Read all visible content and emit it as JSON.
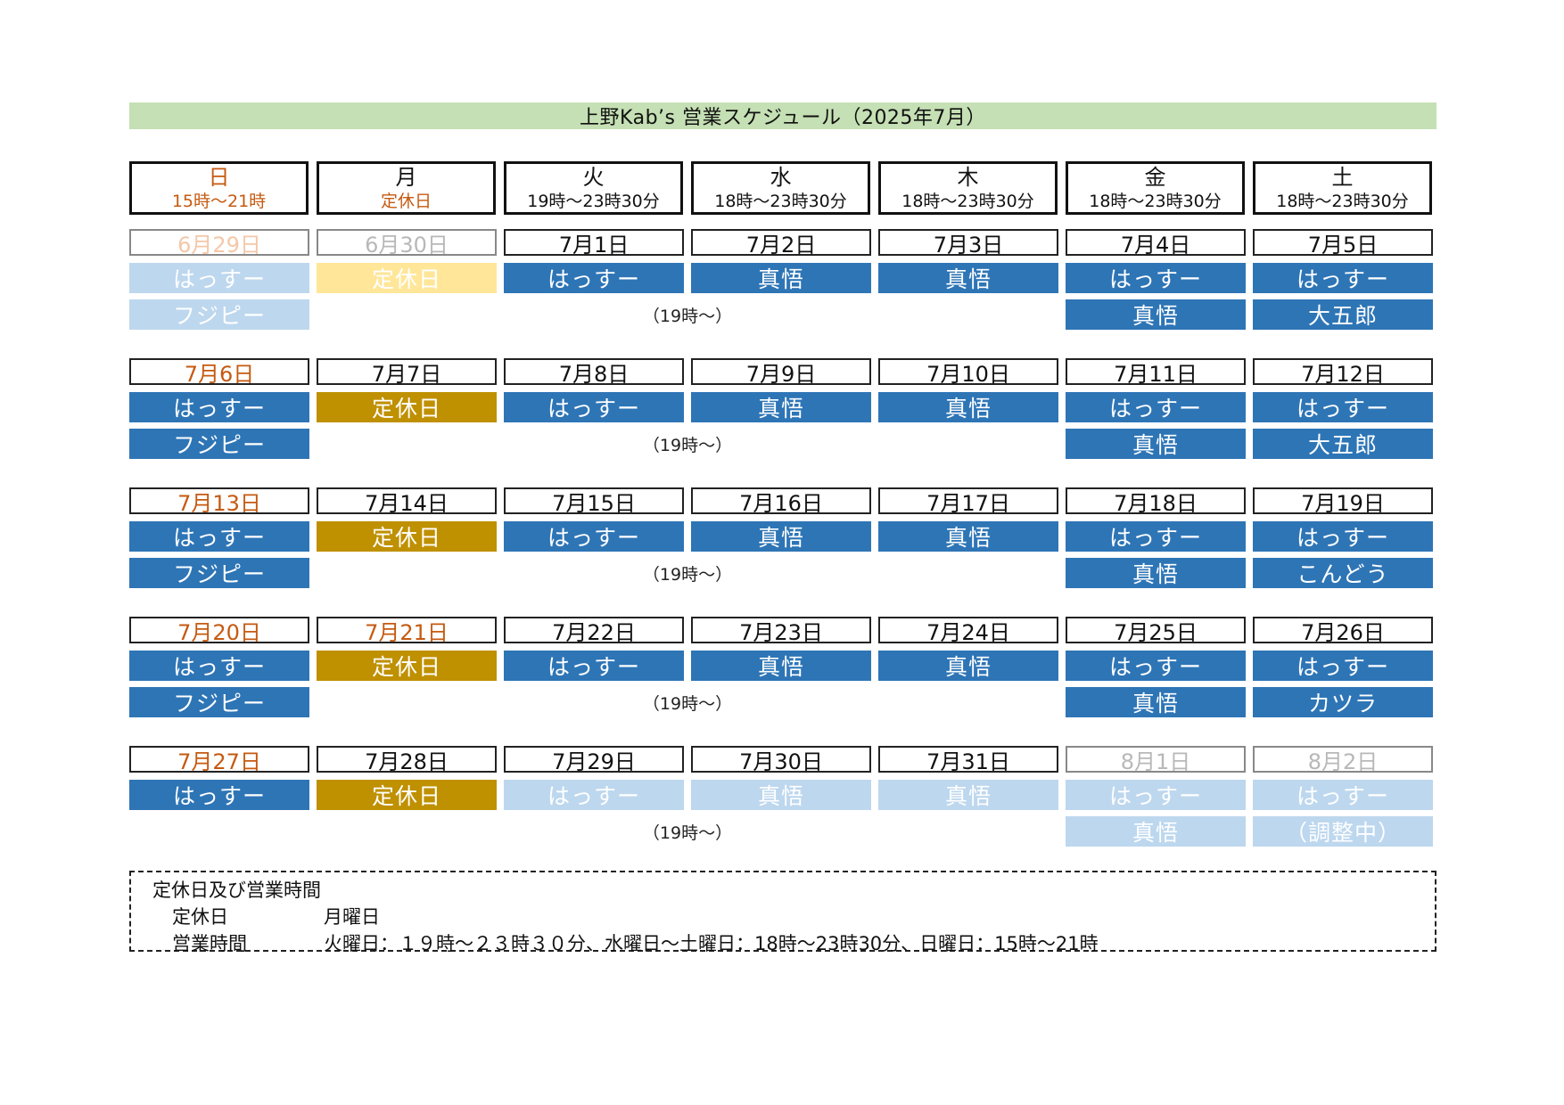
{
  "title": "上野Kab’s 営業スケジュール（2025年7月）",
  "days": [
    {
      "name": "日",
      "hours": "15時～21時"
    },
    {
      "name": "月",
      "hours": "定休日"
    },
    {
      "name": "火",
      "hours": "19時～23時30分"
    },
    {
      "name": "水",
      "hours": "18時～23時30分"
    },
    {
      "name": "木",
      "hours": "18時～23時30分"
    },
    {
      "name": "金",
      "hours": "18時～23時30分"
    },
    {
      "name": "土",
      "hours": "18時～23時30分"
    }
  ],
  "colors": {
    "blue": "#2e75b6",
    "light_blue": "#bdd7ee",
    "gold": "#bf9000",
    "light_gold": "#ffe699",
    "orange": "#c55a11",
    "title_green": "#c5e0b4"
  },
  "weeks": [
    [
      {
        "date": "6月29日",
        "style": "fade-sun",
        "r1": {
          "text": "はっすー",
          "c": "light"
        },
        "r2": {
          "text": "フジピー",
          "c": "light"
        }
      },
      {
        "date": "6月30日",
        "style": "fade",
        "r1": {
          "text": "定休日",
          "c": "lgold"
        },
        "r2": null
      },
      {
        "date": "7月1日",
        "style": "",
        "r1": {
          "text": "はっすー",
          "c": "blue"
        },
        "r2": {
          "text": "（19時～）",
          "c": "note"
        }
      },
      {
        "date": "7月2日",
        "style": "",
        "r1": {
          "text": "真悟",
          "c": "blue"
        },
        "r2": null
      },
      {
        "date": "7月3日",
        "style": "",
        "r1": {
          "text": "真悟",
          "c": "blue"
        },
        "r2": null
      },
      {
        "date": "7月4日",
        "style": "",
        "r1": {
          "text": "はっすー",
          "c": "blue"
        },
        "r2": {
          "text": "真悟",
          "c": "blue"
        }
      },
      {
        "date": "7月5日",
        "style": "",
        "r1": {
          "text": "はっすー",
          "c": "blue"
        },
        "r2": {
          "text": "大五郎",
          "c": "blue"
        }
      }
    ],
    [
      {
        "date": "7月6日",
        "style": "sun",
        "r1": {
          "text": "はっすー",
          "c": "blue"
        },
        "r2": {
          "text": "フジピー",
          "c": "blue"
        }
      },
      {
        "date": "7月7日",
        "style": "",
        "r1": {
          "text": "定休日",
          "c": "gold"
        },
        "r2": null
      },
      {
        "date": "7月8日",
        "style": "",
        "r1": {
          "text": "はっすー",
          "c": "blue"
        },
        "r2": {
          "text": "（19時～）",
          "c": "note"
        }
      },
      {
        "date": "7月9日",
        "style": "",
        "r1": {
          "text": "真悟",
          "c": "blue"
        },
        "r2": null
      },
      {
        "date": "7月10日",
        "style": "",
        "r1": {
          "text": "真悟",
          "c": "blue"
        },
        "r2": null
      },
      {
        "date": "7月11日",
        "style": "",
        "r1": {
          "text": "はっすー",
          "c": "blue"
        },
        "r2": {
          "text": "真悟",
          "c": "blue"
        }
      },
      {
        "date": "7月12日",
        "style": "",
        "r1": {
          "text": "はっすー",
          "c": "blue"
        },
        "r2": {
          "text": "大五郎",
          "c": "blue"
        }
      }
    ],
    [
      {
        "date": "7月13日",
        "style": "sun",
        "r1": {
          "text": "はっすー",
          "c": "blue"
        },
        "r2": {
          "text": "フジピー",
          "c": "blue"
        }
      },
      {
        "date": "7月14日",
        "style": "",
        "r1": {
          "text": "定休日",
          "c": "gold"
        },
        "r2": null
      },
      {
        "date": "7月15日",
        "style": "",
        "r1": {
          "text": "はっすー",
          "c": "blue"
        },
        "r2": {
          "text": "（19時～）",
          "c": "note"
        }
      },
      {
        "date": "7月16日",
        "style": "",
        "r1": {
          "text": "真悟",
          "c": "blue"
        },
        "r2": null
      },
      {
        "date": "7月17日",
        "style": "",
        "r1": {
          "text": "真悟",
          "c": "blue"
        },
        "r2": null
      },
      {
        "date": "7月18日",
        "style": "",
        "r1": {
          "text": "はっすー",
          "c": "blue"
        },
        "r2": {
          "text": "真悟",
          "c": "blue"
        }
      },
      {
        "date": "7月19日",
        "style": "",
        "r1": {
          "text": "はっすー",
          "c": "blue"
        },
        "r2": {
          "text": "こんどう",
          "c": "blue"
        }
      }
    ],
    [
      {
        "date": "7月20日",
        "style": "sun",
        "r1": {
          "text": "はっすー",
          "c": "blue"
        },
        "r2": {
          "text": "フジピー",
          "c": "blue"
        }
      },
      {
        "date": "7月21日",
        "style": "hol",
        "r1": {
          "text": "定休日",
          "c": "gold"
        },
        "r2": null
      },
      {
        "date": "7月22日",
        "style": "",
        "r1": {
          "text": "はっすー",
          "c": "blue"
        },
        "r2": {
          "text": "（19時～）",
          "c": "note"
        }
      },
      {
        "date": "7月23日",
        "style": "",
        "r1": {
          "text": "真悟",
          "c": "blue"
        },
        "r2": null
      },
      {
        "date": "7月24日",
        "style": "",
        "r1": {
          "text": "真悟",
          "c": "blue"
        },
        "r2": null
      },
      {
        "date": "7月25日",
        "style": "",
        "r1": {
          "text": "はっすー",
          "c": "blue"
        },
        "r2": {
          "text": "真悟",
          "c": "blue"
        }
      },
      {
        "date": "7月26日",
        "style": "",
        "r1": {
          "text": "はっすー",
          "c": "blue"
        },
        "r2": {
          "text": "カツラ",
          "c": "blue"
        }
      }
    ],
    [
      {
        "date": "7月27日",
        "style": "sun",
        "r1": {
          "text": "はっすー",
          "c": "blue"
        },
        "r2": null
      },
      {
        "date": "7月28日",
        "style": "",
        "r1": {
          "text": "定休日",
          "c": "gold"
        },
        "r2": null
      },
      {
        "date": "7月29日",
        "style": "",
        "r1": {
          "text": "はっすー",
          "c": "light"
        },
        "r2": {
          "text": "（19時～）",
          "c": "note"
        }
      },
      {
        "date": "7月30日",
        "style": "",
        "r1": {
          "text": "真悟",
          "c": "light"
        },
        "r2": null
      },
      {
        "date": "7月31日",
        "style": "",
        "r1": {
          "text": "真悟",
          "c": "light"
        },
        "r2": null
      },
      {
        "date": "8月1日",
        "style": "fade",
        "r1": {
          "text": "はっすー",
          "c": "light"
        },
        "r2": {
          "text": "真悟",
          "c": "light"
        }
      },
      {
        "date": "8月2日",
        "style": "fade",
        "r1": {
          "text": "はっすー",
          "c": "light"
        },
        "r2": {
          "text": "（調整中）",
          "c": "light"
        }
      }
    ]
  ],
  "info": {
    "heading": "定休日及び営業時間",
    "closed_label": "定休日",
    "closed_value": "月曜日",
    "hours_label": "営業時間",
    "hours_value": "火曜日：１９時～２３時３０分、水曜日～土曜日：18時～23時30分、日曜日：15時～21時"
  }
}
